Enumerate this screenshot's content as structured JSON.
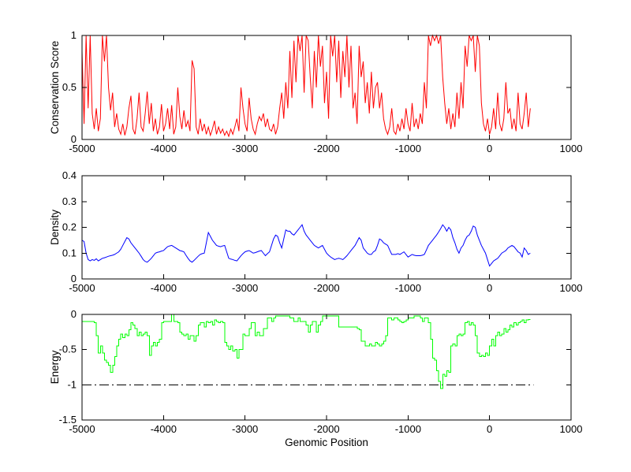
{
  "figure": {
    "background": "#FFFFFF",
    "axis_color": "#000000",
    "text_color": "#000000"
  },
  "chart_data": [
    {
      "type": "line",
      "name": "conservation",
      "ylabel": "Conservation Score",
      "xlabel": null,
      "line_color": "#FF0000",
      "line_style": "solid",
      "grid": false,
      "legend": null,
      "xlim": [
        -5000,
        1000
      ],
      "ylim": [
        0,
        1
      ],
      "xticks": {
        "values": [
          -5000,
          -4000,
          -3000,
          -2000,
          -1000,
          0,
          1000
        ],
        "labels": [
          "-5000",
          "-4000",
          "-3000",
          "-2000",
          "-1000",
          "0",
          "1000"
        ]
      },
      "yticks": {
        "values": [
          0,
          0.5,
          1
        ],
        "labels": [
          "0",
          "0.5",
          "1"
        ]
      },
      "x_start": -5000,
      "x_step": 25,
      "x_end": 500,
      "values": [
        0.85,
        0.15,
        1,
        0.3,
        1,
        0.25,
        0.1,
        0.3,
        0.08,
        0.2,
        1,
        0.75,
        1,
        0.5,
        0.28,
        0.45,
        0.12,
        0.25,
        0.1,
        0.05,
        0.15,
        0.04,
        0.12,
        0.3,
        0.42,
        0.1,
        0.05,
        0.2,
        0.45,
        0.12,
        0.08,
        0.25,
        0.46,
        0.15,
        0.35,
        0.08,
        0.2,
        0.05,
        0.12,
        0.34,
        0.08,
        0.15,
        0.3,
        0.1,
        0.33,
        0.05,
        0.12,
        0.5,
        0.22,
        0.1,
        0.28,
        0.12,
        0.18,
        0.08,
        0.76,
        0.68,
        0.12,
        0.05,
        0.2,
        0.08,
        0.15,
        0.05,
        0.12,
        0.04,
        0.1,
        0.18,
        0.05,
        0.12,
        0.06,
        0.1,
        0.04,
        0.08,
        0.03,
        0.1,
        0.05,
        0.12,
        0.2,
        0.08,
        0.5,
        0.3,
        0.15,
        0.08,
        0.4,
        0.2,
        0.1,
        0.05,
        0.15,
        0.22,
        0.18,
        0.25,
        0.12,
        0.2,
        0.1,
        0.08,
        0.15,
        0.05,
        0.12,
        0.3,
        0.45,
        0.2,
        0.55,
        0.3,
        0.85,
        0.4,
        0.95,
        0.55,
        1,
        0.85,
        1,
        0.45,
        1,
        0.95,
        0.6,
        0.3,
        0.85,
        0.5,
        1,
        0.7,
        0.9,
        0.35,
        0.65,
        0.2,
        1,
        0.8,
        1,
        0.55,
        0.95,
        0.4,
        0.85,
        0.6,
        1,
        0.5,
        0.9,
        0.3,
        0.45,
        0.15,
        0.9,
        0.6,
        0.75,
        0.35,
        0.55,
        0.25,
        0.65,
        0.3,
        0.5,
        0.55,
        0.3,
        0.45,
        0.2,
        0.1,
        0.05,
        0.12,
        0.3,
        0.08,
        0.05,
        0.15,
        0.08,
        0.2,
        0.1,
        0.3,
        0.15,
        0.08,
        0.35,
        0.12,
        0.2,
        0.1,
        0.25,
        0.15,
        0.55,
        0.3,
        1,
        0.9,
        1,
        0.95,
        1,
        0.92,
        1,
        0.6,
        0.35,
        0.15,
        0.3,
        0.1,
        0.25,
        0.12,
        0.45,
        0.2,
        0.55,
        0.3,
        0.9,
        0.7,
        1,
        0.95,
        1,
        0.65,
        1,
        0.9,
        0.35,
        0.15,
        0.08,
        0.2,
        0.05,
        0.12,
        0.3,
        0.1,
        0.45,
        0.15,
        0.08,
        0.2,
        0.55,
        0.25,
        0.3,
        0.1,
        0.2,
        0.08,
        0.45,
        0.15,
        0.1,
        0.25,
        0.45,
        0.12,
        0.3
      ]
    },
    {
      "type": "line",
      "name": "density",
      "ylabel": "Density",
      "xlabel": null,
      "line_color": "#0000FF",
      "line_style": "solid",
      "grid": false,
      "legend": null,
      "xlim": [
        -5000,
        1000
      ],
      "ylim": [
        0,
        0.4
      ],
      "xticks": {
        "values": [
          -5000,
          -4000,
          -3000,
          -2000,
          -1000,
          0,
          1000
        ],
        "labels": [
          "-5000",
          "-4000",
          "-3000",
          "-2000",
          "-1000",
          "0",
          "1000"
        ]
      },
      "yticks": {
        "values": [
          0,
          0.1,
          0.2,
          0.3,
          0.4
        ],
        "labels": [
          "0",
          "0.1",
          "0.2",
          "0.3",
          "0.4"
        ]
      },
      "x_start": -5000,
      "x_step": 25,
      "x_end": 500,
      "values": [
        0.15,
        0.145,
        0.1,
        0.075,
        0.07,
        0.075,
        0.072,
        0.078,
        0.07,
        0.075,
        0.08,
        0.082,
        0.085,
        0.088,
        0.09,
        0.092,
        0.095,
        0.1,
        0.105,
        0.115,
        0.13,
        0.145,
        0.16,
        0.155,
        0.14,
        0.13,
        0.12,
        0.11,
        0.1,
        0.088,
        0.075,
        0.068,
        0.065,
        0.072,
        0.08,
        0.09,
        0.1,
        0.103,
        0.105,
        0.108,
        0.11,
        0.118,
        0.125,
        0.128,
        0.13,
        0.125,
        0.12,
        0.115,
        0.11,
        0.108,
        0.105,
        0.092,
        0.08,
        0.07,
        0.065,
        0.072,
        0.08,
        0.088,
        0.095,
        0.098,
        0.1,
        0.14,
        0.18,
        0.165,
        0.15,
        0.14,
        0.13,
        0.127,
        0.125,
        0.128,
        0.13,
        0.105,
        0.08,
        0.077,
        0.075,
        0.072,
        0.07,
        0.08,
        0.09,
        0.098,
        0.105,
        0.108,
        0.11,
        0.105,
        0.1,
        0.102,
        0.105,
        0.108,
        0.11,
        0.1,
        0.09,
        0.098,
        0.105,
        0.13,
        0.155,
        0.17,
        0.165,
        0.14,
        0.12,
        0.155,
        0.19,
        0.185,
        0.185,
        0.175,
        0.17,
        0.18,
        0.19,
        0.2,
        0.21,
        0.185,
        0.17,
        0.16,
        0.15,
        0.14,
        0.13,
        0.125,
        0.12,
        0.125,
        0.13,
        0.115,
        0.1,
        0.092,
        0.085,
        0.08,
        0.075,
        0.078,
        0.08,
        0.078,
        0.075,
        0.082,
        0.09,
        0.1,
        0.11,
        0.12,
        0.13,
        0.145,
        0.16,
        0.15,
        0.12,
        0.11,
        0.1,
        0.095,
        0.095,
        0.105,
        0.11,
        0.13,
        0.155,
        0.15,
        0.14,
        0.135,
        0.13,
        0.112,
        0.095,
        0.095,
        0.095,
        0.098,
        0.095,
        0.1,
        0.105,
        0.095,
        0.085,
        0.09,
        0.095,
        0.092,
        0.09,
        0.09,
        0.09,
        0.092,
        0.095,
        0.112,
        0.13,
        0.14,
        0.15,
        0.16,
        0.17,
        0.182,
        0.195,
        0.21,
        0.2,
        0.185,
        0.2,
        0.19,
        0.16,
        0.14,
        0.115,
        0.1,
        0.12,
        0.13,
        0.15,
        0.165,
        0.17,
        0.185,
        0.205,
        0.2,
        0.17,
        0.15,
        0.13,
        0.115,
        0.1,
        0.075,
        0.05,
        0.06,
        0.07,
        0.075,
        0.08,
        0.09,
        0.1,
        0.105,
        0.11,
        0.12,
        0.125,
        0.13,
        0.125,
        0.115,
        0.105,
        0.1,
        0.085,
        0.12,
        0.11,
        0.095,
        0.1
      ]
    },
    {
      "type": "line",
      "name": "energy",
      "ylabel": "Energy",
      "xlabel": "Genomic Position",
      "line_color": "#00FF00",
      "line_style": "solid",
      "draw_mode": "steps",
      "grid": false,
      "legend": null,
      "xlim": [
        -5000,
        1000
      ],
      "ylim": [
        -1.5,
        0
      ],
      "xticks": {
        "values": [
          -5000,
          -4000,
          -3000,
          -2000,
          -1000,
          0,
          1000
        ],
        "labels": [
          "-5000",
          "-4000",
          "-3000",
          "-2000",
          "-1000",
          "0",
          "1000"
        ]
      },
      "yticks": {
        "values": [
          -1.5,
          -1,
          -0.5,
          0
        ],
        "labels": [
          "-1.5",
          "-1",
          "-0.5",
          "0"
        ]
      },
      "x_start": -5000,
      "x_step": 25,
      "x_end": 500,
      "threshold": {
        "value": -1,
        "style": "dash-dot",
        "color": "#000000",
        "x_range": [
          -5000,
          540
        ]
      },
      "values": [
        -0.1,
        -0.1,
        -0.1,
        -0.1,
        -0.1,
        -0.1,
        -0.12,
        -0.3,
        -0.55,
        -0.45,
        -0.55,
        -0.65,
        -0.68,
        -0.72,
        -0.82,
        -0.72,
        -0.6,
        -0.45,
        -0.35,
        -0.28,
        -0.33,
        -0.28,
        -0.3,
        -0.22,
        -0.12,
        -0.15,
        -0.2,
        -0.3,
        -0.25,
        -0.3,
        -0.28,
        -0.25,
        -0.3,
        -0.58,
        -0.45,
        -0.4,
        -0.45,
        -0.4,
        -0.35,
        -0.12,
        -0.1,
        -0.1,
        -0.1,
        -0.1,
        0,
        -0.1,
        -0.1,
        -0.12,
        -0.25,
        -0.28,
        -0.3,
        -0.28,
        -0.35,
        -0.3,
        -0.3,
        -0.38,
        -0.3,
        -0.15,
        -0.12,
        -0.12,
        -0.18,
        -0.1,
        -0.12,
        -0.1,
        -0.15,
        -0.08,
        -0.1,
        -0.12,
        -0.1,
        -0.12,
        -0.4,
        -0.45,
        -0.5,
        -0.45,
        -0.52,
        -0.5,
        -0.62,
        -0.5,
        -0.5,
        -0.28,
        -0.3,
        -0.3,
        -0.2,
        -0.12,
        -0.12,
        -0.3,
        -0.25,
        -0.3,
        -0.3,
        -0.2,
        -0.2,
        -0.05,
        -0.05,
        -0.1,
        -0.05,
        -0.02,
        -0.02,
        -0.02,
        -0.02,
        -0.02,
        -0.02,
        -0.02,
        -0.05,
        -0.05,
        -0.1,
        -0.1,
        -0.05,
        -0.1,
        -0.1,
        -0.1,
        -0.15,
        -0.25,
        -0.15,
        -0.1,
        -0.1,
        -0.25,
        -0.15,
        -0.1,
        -0.02,
        -0.02,
        -0.02,
        -0.02,
        -0.02,
        -0.02,
        -0.02,
        -0.02,
        -0.18,
        -0.18,
        -0.18,
        -0.18,
        -0.18,
        -0.18,
        -0.18,
        -0.18,
        -0.18,
        -0.2,
        -0.22,
        -0.38,
        -0.38,
        -0.45,
        -0.45,
        -0.42,
        -0.45,
        -0.45,
        -0.4,
        -0.42,
        -0.45,
        -0.42,
        -0.38,
        -0.3,
        -0.05,
        -0.05,
        -0.08,
        -0.05,
        -0.05,
        -0.08,
        -0.1,
        -0.12,
        -0.1,
        -0.08,
        -0.05,
        -0.05,
        -0.05,
        -0.02,
        -0.02,
        -0.02,
        -0.05,
        -0.1,
        -0.05,
        -0.05,
        -0.12,
        -0.35,
        -0.62,
        -0.65,
        -0.8,
        -0.95,
        -1.05,
        -0.85,
        -0.88,
        -0.8,
        -0.82,
        -0.45,
        -0.42,
        -0.45,
        -0.3,
        -0.28,
        -0.3,
        -0.28,
        -0.12,
        -0.1,
        -0.15,
        -0.12,
        -0.15,
        -0.3,
        -0.55,
        -0.6,
        -0.58,
        -0.6,
        -0.55,
        -0.58,
        -0.45,
        -0.35,
        -0.45,
        -0.3,
        -0.25,
        -0.3,
        -0.28,
        -0.2,
        -0.25,
        -0.22,
        -0.15,
        -0.18,
        -0.12,
        -0.15,
        -0.12,
        -0.1,
        -0.08,
        -0.12,
        -0.08,
        -0.07,
        -0.07
      ]
    }
  ]
}
